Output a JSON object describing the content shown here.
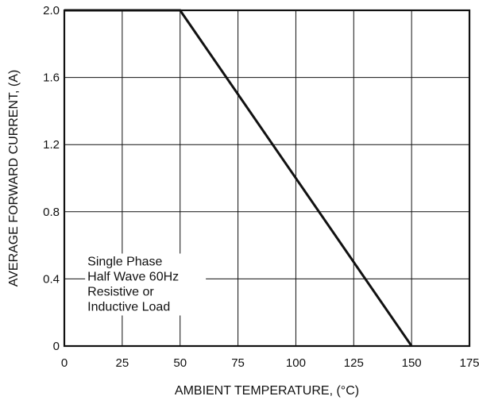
{
  "chart_data": {
    "type": "line",
    "xlabel": "AMBIENT TEMPERATURE, (°C)",
    "ylabel": "AVERAGE FORWARD CURRENT, (A)",
    "xlim": [
      0,
      175
    ],
    "ylim": [
      0,
      2.0
    ],
    "x_ticks": [
      0,
      25,
      50,
      75,
      100,
      125,
      150,
      175
    ],
    "y_ticks": [
      0,
      0.4,
      0.8,
      1.2,
      1.6,
      2.0
    ],
    "x_tick_labels": [
      "0",
      "25",
      "50",
      "75",
      "100",
      "125",
      "150",
      "175"
    ],
    "y_tick_labels": [
      "0",
      "0.4",
      "0.8",
      "1.2",
      "1.6",
      "2.0"
    ],
    "grid": true,
    "series": [
      {
        "x": [
          0,
          50,
          150
        ],
        "y": [
          2.0,
          2.0,
          0
        ],
        "color": "#111111"
      }
    ],
    "annotation": {
      "lines": [
        "Single Phase",
        "Half Wave 60Hz",
        "Resistive or",
        "Inductive Load"
      ],
      "anchor_x": 10,
      "anchor_y": 0.48
    }
  }
}
